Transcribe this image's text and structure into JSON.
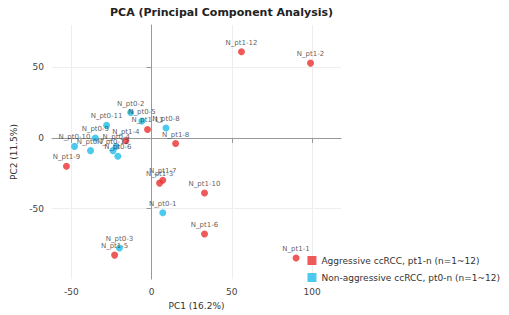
{
  "chart_data": {
    "type": "scatter",
    "title": "PCA (Principal Component Analysis)",
    "x_label": "PC1 (16.2%)",
    "y_label": "PC2 (11.5%)",
    "xlim": [
      -62,
      118
    ],
    "xticks": [
      -50,
      0,
      50,
      100
    ],
    "ylim": [
      -100,
      80
    ],
    "yticks": [
      -50,
      0,
      50
    ],
    "grid": true,
    "legend": "bottom-right",
    "marker": "circle",
    "series": [
      {
        "name": "Aggressive ccRCC, pt1-n (n=1~12)",
        "color": "#e8312f",
        "labels": [
          "N_pt1-1",
          "N_pt1-2",
          "N_pt1-3",
          "N_pt1-4",
          "N_pt1-5",
          "N_pt1-6",
          "N_pt1-7",
          "N_pt1-8",
          "N_pt1-9",
          "N_pt1-10",
          "N_pt1-11",
          "N_pt1-12"
        ],
        "x": [
          90,
          99,
          5,
          -16,
          -23,
          33,
          7,
          15,
          -53,
          33,
          -2.5,
          56
        ],
        "y": [
          -85,
          53,
          -32,
          -2,
          -83,
          -68,
          -30,
          -4,
          -20,
          -39,
          6,
          61
        ]
      },
      {
        "name": "Non-aggressive ccRCC, pt0-n (n=1~12)",
        "color": "#1ebde8",
        "labels": [
          "N_pt0-1",
          "N_pt0-2",
          "N_pt0-3",
          "N_pt0-4",
          "N_pt0-5",
          "N_pt0-6",
          "N_pt0-7",
          "N_pt0-8",
          "N_pt0-9",
          "N_pt0-10",
          "N_pt0-11",
          "N_pt0-12"
        ],
        "x": [
          7,
          -13,
          -20,
          -22,
          -6,
          -21,
          -38,
          9,
          -35,
          -48,
          -28,
          -24
        ],
        "y": [
          -53,
          18,
          -78,
          -6,
          12,
          -13,
          -9,
          7,
          0,
          -6,
          9,
          -9
        ]
      }
    ]
  }
}
